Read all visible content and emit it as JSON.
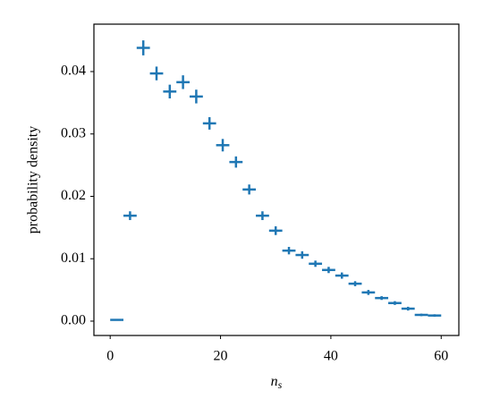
{
  "chart_data": {
    "type": "errorbar",
    "xlabel": "n",
    "xlabel_sub": "s",
    "ylabel": "probability density",
    "x": [
      1.2,
      3.6,
      6.0,
      8.4,
      10.8,
      13.2,
      15.6,
      18.0,
      20.4,
      22.8,
      25.2,
      27.6,
      30.0,
      32.4,
      34.8,
      37.2,
      39.6,
      42.0,
      44.4,
      46.8,
      49.2,
      51.6,
      54.0,
      56.4,
      58.8
    ],
    "xerr": 1.2,
    "values": [
      0.0002,
      0.0169,
      0.0438,
      0.0397,
      0.0368,
      0.0383,
      0.036,
      0.0317,
      0.0282,
      0.0255,
      0.0211,
      0.0169,
      0.0145,
      0.0113,
      0.0106,
      0.0092,
      0.0082,
      0.0073,
      0.006,
      0.0046,
      0.0037,
      0.0029,
      0.002,
      0.001,
      0.0009
    ],
    "yerr": [
      0.0001,
      0.0007,
      0.0012,
      0.0011,
      0.0011,
      0.0011,
      0.0011,
      0.001,
      0.001,
      0.0009,
      0.0008,
      0.0007,
      0.0007,
      0.0006,
      0.0006,
      0.0005,
      0.0005,
      0.0005,
      0.0004,
      0.0004,
      0.0003,
      0.0003,
      0.0003,
      0.0002,
      0.0002
    ],
    "color": "#1f77b4",
    "xlim": [
      -2.95,
      63.2
    ],
    "ylim": [
      -0.0023,
      0.0476
    ],
    "xticks": [
      0,
      20,
      40,
      60
    ],
    "yticks": [
      {
        "value": 0,
        "label": "0.00"
      },
      {
        "value": 0.01,
        "label": "0.01"
      },
      {
        "value": 0.02,
        "label": "0.02"
      },
      {
        "value": 0.03,
        "label": "0.03"
      },
      {
        "value": 0.04,
        "label": "0.04"
      }
    ]
  }
}
